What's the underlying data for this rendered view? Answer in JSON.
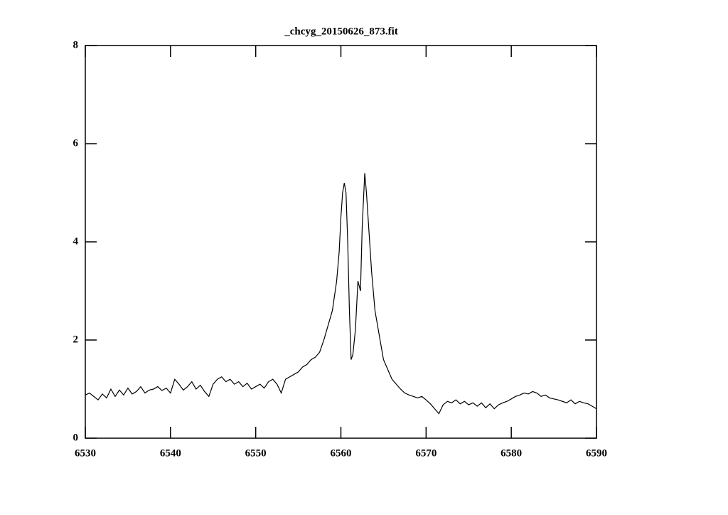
{
  "chart_data": {
    "type": "line",
    "title": "_chcyg_20150626_873.fit",
    "color": "#000000",
    "xlim": [
      6530,
      6590
    ],
    "ylim": [
      0,
      8
    ],
    "xticks": [
      6530,
      6540,
      6550,
      6560,
      6570,
      6580,
      6590
    ],
    "yticks": [
      0,
      2,
      4,
      6,
      8
    ],
    "x": [
      6530,
      6530.5,
      6531,
      6531.5,
      6532,
      6532.5,
      6533,
      6533.5,
      6534,
      6534.5,
      6535,
      6535.5,
      6536,
      6536.5,
      6537,
      6537.5,
      6538,
      6538.5,
      6539,
      6539.5,
      6540,
      6540.5,
      6541,
      6541.5,
      6542,
      6542.5,
      6543,
      6543.5,
      6544,
      6544.5,
      6545,
      6545.5,
      6546,
      6546.5,
      6547,
      6547.5,
      6548,
      6548.5,
      6549,
      6549.5,
      6550,
      6550.5,
      6551,
      6551.5,
      6552,
      6552.5,
      6553,
      6553.5,
      6554,
      6554.5,
      6555,
      6555.5,
      6556,
      6556.5,
      6557,
      6557.5,
      6558,
      6558.5,
      6559,
      6559.5,
      6559.8,
      6560,
      6560.2,
      6560.4,
      6560.6,
      6560.8,
      6561,
      6561.2,
      6561.4,
      6561.7,
      6562,
      6562.3,
      6562.5,
      6562.8,
      6563,
      6563.3,
      6563.6,
      6564,
      6564.5,
      6565,
      6565.5,
      6566,
      6566.5,
      6567,
      6567.5,
      6568,
      6568.5,
      6569,
      6569.5,
      6570,
      6570.5,
      6571,
      6571.5,
      6572,
      6572.5,
      6573,
      6573.5,
      6574,
      6574.5,
      6575,
      6575.5,
      6576,
      6576.5,
      6577,
      6577.5,
      6578,
      6578.5,
      6579,
      6579.5,
      6580,
      6580.5,
      6581,
      6581.5,
      6582,
      6582.5,
      6583,
      6583.5,
      6584,
      6584.5,
      6585,
      6585.5,
      6586,
      6586.5,
      6587,
      6587.5,
      6588,
      6588.5,
      6589,
      6589.5,
      6590
    ],
    "values": [
      0.88,
      0.92,
      0.85,
      0.78,
      0.9,
      0.82,
      1.0,
      0.85,
      0.98,
      0.88,
      1.02,
      0.9,
      0.95,
      1.05,
      0.92,
      0.98,
      1.0,
      1.05,
      0.97,
      1.02,
      0.92,
      1.2,
      1.1,
      0.98,
      1.05,
      1.15,
      1.0,
      1.08,
      0.95,
      0.85,
      1.1,
      1.2,
      1.25,
      1.15,
      1.2,
      1.1,
      1.15,
      1.05,
      1.12,
      1.0,
      1.05,
      1.1,
      1.02,
      1.15,
      1.2,
      1.1,
      0.92,
      1.2,
      1.25,
      1.3,
      1.35,
      1.45,
      1.5,
      1.6,
      1.65,
      1.75,
      2.0,
      2.3,
      2.6,
      3.2,
      3.8,
      4.5,
      5.0,
      5.2,
      5.0,
      4.0,
      2.6,
      1.6,
      1.7,
      2.2,
      3.2,
      3.0,
      4.3,
      5.4,
      5.0,
      4.2,
      3.4,
      2.6,
      2.1,
      1.6,
      1.4,
      1.2,
      1.1,
      1.0,
      0.92,
      0.88,
      0.85,
      0.82,
      0.85,
      0.78,
      0.7,
      0.6,
      0.5,
      0.68,
      0.75,
      0.72,
      0.78,
      0.7,
      0.75,
      0.68,
      0.72,
      0.65,
      0.72,
      0.62,
      0.7,
      0.6,
      0.68,
      0.72,
      0.75,
      0.8,
      0.85,
      0.88,
      0.92,
      0.9,
      0.95,
      0.92,
      0.85,
      0.88,
      0.82,
      0.8,
      0.78,
      0.75,
      0.72,
      0.78,
      0.7,
      0.75,
      0.72,
      0.7,
      0.65,
      0.6
    ]
  }
}
